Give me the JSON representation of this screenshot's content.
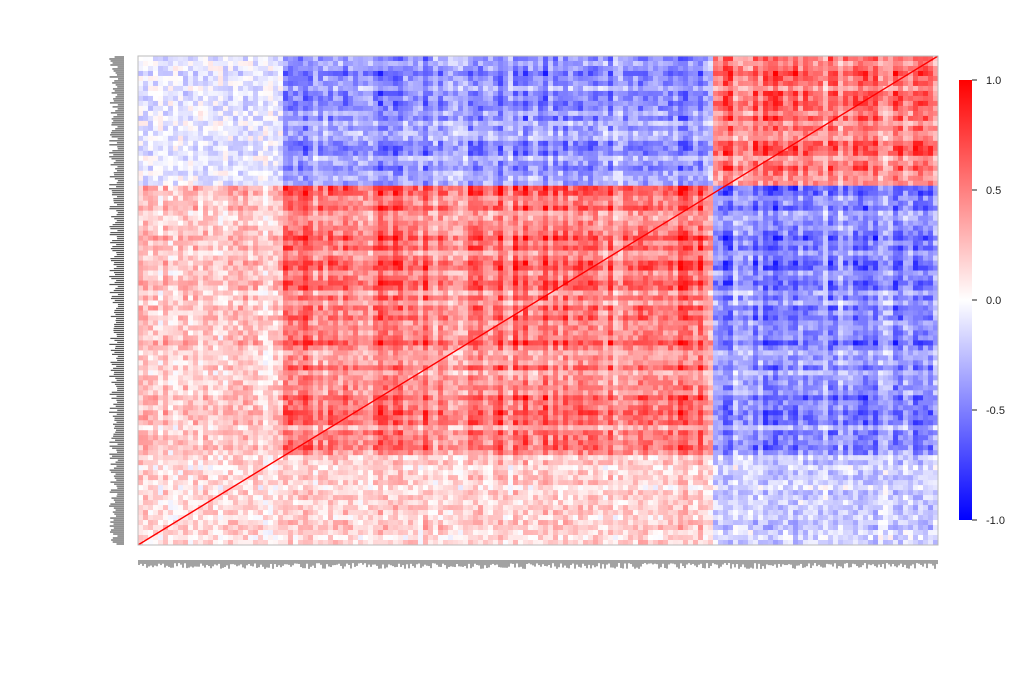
{
  "chart_data": {
    "type": "heatmap",
    "title": "",
    "xlabel": "",
    "ylabel": "",
    "value_range": [
      -1.0,
      1.0
    ],
    "diagonal_value": 1.0,
    "colorscale": {
      "negative": "#0000ff",
      "neutral": "#ffffff",
      "positive": "#ff0000"
    },
    "colorbar": {
      "ticks": [
        1.0,
        0.5,
        0.0,
        -0.5,
        -1.0
      ],
      "tick_labels": [
        "1.0",
        "0.5",
        "0.0",
        "-0.5",
        "-1.0"
      ]
    },
    "row_labels_legible": false,
    "column_labels_legible": false,
    "grid": false,
    "legend": "right",
    "block_structure_note_free": true,
    "blocks": [
      {
        "rows": [
          0.0,
          0.27
        ],
        "cols": [
          0.0,
          0.18
        ],
        "value": -0.1
      },
      {
        "rows": [
          0.0,
          0.27
        ],
        "cols": [
          0.18,
          0.72
        ],
        "value": -0.45
      },
      {
        "rows": [
          0.0,
          0.27
        ],
        "cols": [
          0.72,
          1.0
        ],
        "value": 0.55
      },
      {
        "rows": [
          0.27,
          0.82
        ],
        "cols": [
          0.0,
          0.18
        ],
        "value": 0.25
      },
      {
        "rows": [
          0.27,
          0.82
        ],
        "cols": [
          0.18,
          0.72
        ],
        "value": 0.6
      },
      {
        "rows": [
          0.27,
          0.82
        ],
        "cols": [
          0.72,
          1.0
        ],
        "value": -0.5
      },
      {
        "rows": [
          0.82,
          1.0
        ],
        "cols": [
          0.0,
          0.18
        ],
        "value": 0.15
      },
      {
        "rows": [
          0.82,
          1.0
        ],
        "cols": [
          0.18,
          0.72
        ],
        "value": 0.2
      },
      {
        "rows": [
          0.82,
          1.0
        ],
        "cols": [
          0.72,
          1.0
        ],
        "value": -0.2
      }
    ]
  }
}
